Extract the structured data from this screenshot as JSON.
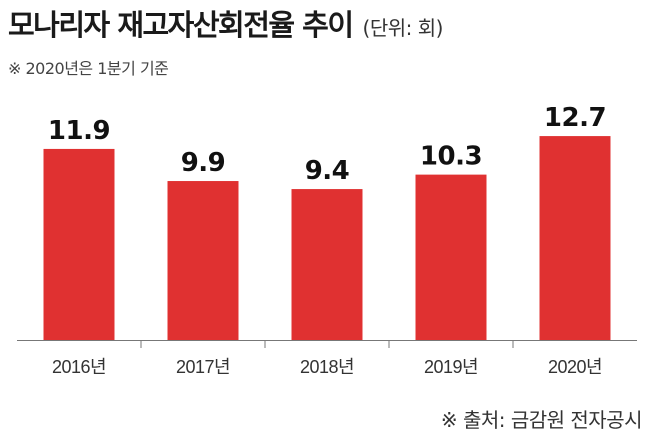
{
  "header": {
    "title": "모나리자 재고자산회전율 추이",
    "unit": "(단위: 회)",
    "note": "※ 2020년은 1분기 기준"
  },
  "footer": {
    "source": "※ 출처: 금감원 전자공시"
  },
  "chart_data": {
    "type": "bar",
    "title": "모나리자 재고자산회전율 추이",
    "categories": [
      "2016년",
      "2017년",
      "2018년",
      "2019년",
      "2020년"
    ],
    "values": [
      11.9,
      9.9,
      9.4,
      10.3,
      12.7
    ],
    "value_labels": [
      "11.9",
      "9.9",
      "9.4",
      "10.3",
      "12.7"
    ],
    "xlabel": "",
    "ylabel": "",
    "ylim": [
      0,
      14.2
    ],
    "grid": false,
    "legend": "none",
    "bar_color": "#e03131"
  }
}
